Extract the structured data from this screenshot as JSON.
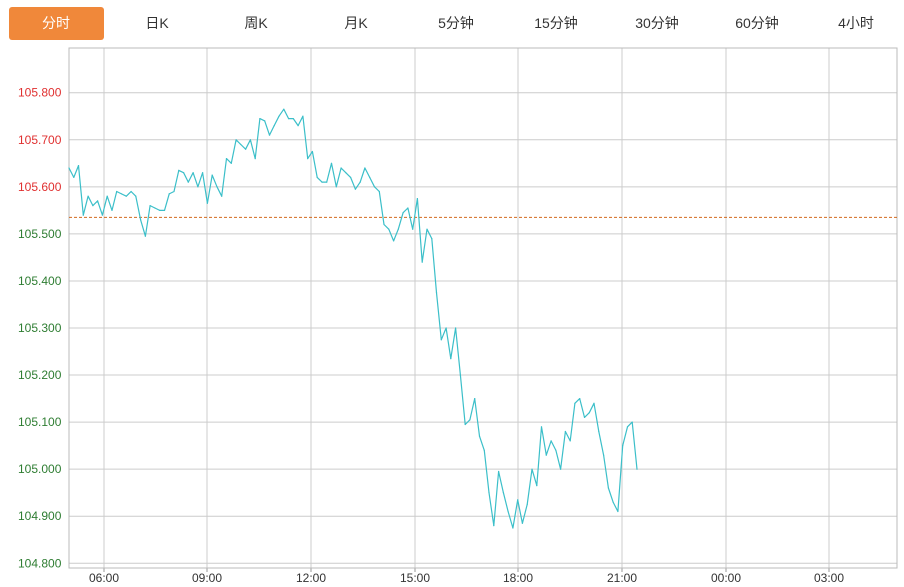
{
  "tabs": [
    {
      "label": "分时",
      "active": true
    },
    {
      "label": "日K",
      "active": false
    },
    {
      "label": "周K",
      "active": false
    },
    {
      "label": "月K",
      "active": false
    },
    {
      "label": "5分钟",
      "active": false
    },
    {
      "label": "15分钟",
      "active": false
    },
    {
      "label": "30分钟",
      "active": false
    },
    {
      "label": "60分钟",
      "active": false
    },
    {
      "label": "4小时",
      "active": false
    }
  ],
  "colors": {
    "accent": "#f0883a",
    "line": "#3bbfc9",
    "up_label": "#e03030",
    "down_label": "#2e7d32",
    "reference_line": "#d2691e",
    "grid": "#cccccc"
  },
  "chart_data": {
    "type": "line",
    "title": "",
    "xlabel": "",
    "ylabel": "",
    "reference_value": 105.535,
    "ylim": [
      104.79,
      105.895
    ],
    "y_ticks": [
      "105.800",
      "105.700",
      "105.600",
      "105.500",
      "105.400",
      "105.300",
      "105.200",
      "105.100",
      "105.000",
      "104.900",
      "104.800"
    ],
    "x_ticks": [
      "06:00",
      "09:00",
      "12:00",
      "15:00",
      "18:00",
      "21:00",
      "00:00",
      "03:00"
    ],
    "grid": true,
    "series": [
      {
        "values": [
          105.64,
          105.62,
          105.645,
          105.54,
          105.58,
          105.56,
          105.57,
          105.54,
          105.58,
          105.55,
          105.59,
          105.585,
          105.58,
          105.59,
          105.58,
          105.53,
          105.495,
          105.56,
          105.555,
          105.55,
          105.55,
          105.585,
          105.59,
          105.635,
          105.63,
          105.61,
          105.63,
          105.6,
          105.63,
          105.565,
          105.625,
          105.6,
          105.58,
          105.66,
          105.65,
          105.7,
          105.69,
          105.68,
          105.7,
          105.66,
          105.745,
          105.74,
          105.71,
          105.73,
          105.75,
          105.765,
          105.745,
          105.745,
          105.73,
          105.75,
          105.66,
          105.675,
          105.62,
          105.61,
          105.61,
          105.65,
          105.6,
          105.64,
          105.63,
          105.62,
          105.595,
          105.61,
          105.64,
          105.62,
          105.6,
          105.59,
          105.52,
          105.51,
          105.485,
          105.51,
          105.545,
          105.555,
          105.51,
          105.575,
          105.44,
          105.51,
          105.49,
          105.375,
          105.275,
          105.3,
          105.235,
          105.3,
          105.2,
          105.095,
          105.105,
          105.15,
          105.07,
          105.04,
          104.95,
          104.88,
          104.995,
          104.95,
          104.91,
          104.875,
          104.935,
          104.885,
          104.925,
          105.0,
          104.965,
          105.09,
          105.03,
          105.06,
          105.04,
          105.0,
          105.08,
          105.06,
          105.14,
          105.15,
          105.11,
          105.12,
          105.14,
          105.08,
          105.03,
          104.96,
          104.93,
          104.91,
          105.05,
          105.09,
          105.1,
          105.0
        ]
      }
    ]
  }
}
